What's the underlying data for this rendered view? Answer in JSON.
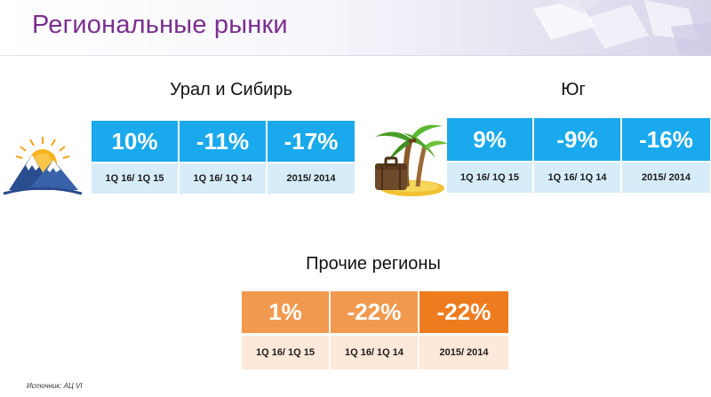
{
  "slide": {
    "title": "Региональные рынки"
  },
  "regions": [
    {
      "name": "Урал и Сибирь",
      "icon": "mountain-sun-icon",
      "values": [
        "10%",
        "-11%",
        "-17%"
      ],
      "periods": [
        "1Q 16/ 1Q 15",
        "1Q 16/ 1Q 14",
        "2015/ 2014"
      ]
    },
    {
      "name": "Юг",
      "icon": "palm-island-suitcase-icon",
      "values": [
        "9%",
        "-9%",
        "-16%"
      ],
      "periods": [
        "1Q 16/ 1Q 15",
        "1Q 16/ 1Q 14",
        "2015/ 2014"
      ]
    },
    {
      "name": "Прочие регионы",
      "values": [
        "1%",
        "-22%",
        "-22%"
      ],
      "periods": [
        "1Q 16/ 1Q 15",
        "1Q 16/ 1Q 14",
        "2015/ 2014"
      ]
    }
  ],
  "footer": {
    "source": "Источник: АЦ VI"
  },
  "colors": {
    "title": "#7a2f8f",
    "blue_value": "#19a9ec",
    "blue_period": "#d7ecf9",
    "orange_value": "#f19a4f",
    "orange_value_dark": "#ee7c1f",
    "orange_period": "#fde8da"
  }
}
